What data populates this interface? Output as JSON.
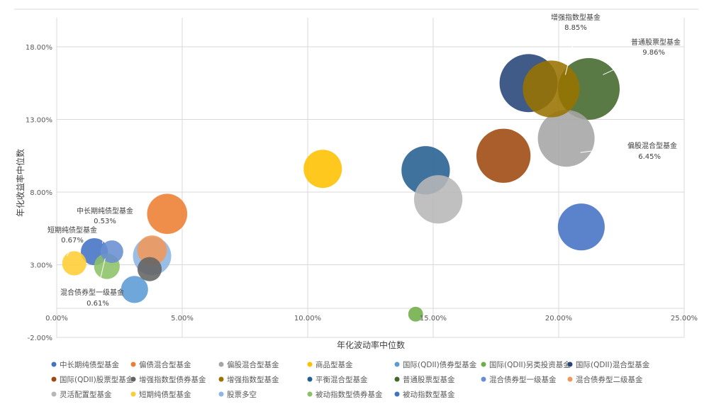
{
  "chart_data": {
    "type": "bubble",
    "title": "",
    "xlabel": "年化波动率中位数",
    "ylabel": "年化收益率中位数",
    "xlim": [
      0,
      25
    ],
    "ylim": [
      -2,
      20
    ],
    "x_ticks": [
      "0.00%",
      "5.00%",
      "10.00%",
      "15.00%",
      "20.00%",
      "25.00%"
    ],
    "y_ticks": [
      "-2.00%",
      "3.00%",
      "8.00%",
      "13.00%",
      "18.00%"
    ],
    "x_tick_values": [
      0,
      5,
      10,
      15,
      20,
      25
    ],
    "y_tick_values": [
      -2,
      3,
      8,
      13,
      18
    ],
    "grid": true,
    "legend_position": "bottom",
    "series": [
      {
        "name": "中长期纯债型基金",
        "color": "#4472C4",
        "x": 1.5,
        "y": 3.9,
        "size": 0.5
      },
      {
        "name": "偏债混合型基金",
        "color": "#ED7D31",
        "x": 4.4,
        "y": 6.5,
        "size": 1.1
      },
      {
        "name": "偏股混合型基金",
        "color": "#A5A5A5",
        "x": 20.3,
        "y": 11.7,
        "size": 2.2
      },
      {
        "name": "商品型基金",
        "color": "#FFC000",
        "x": 10.6,
        "y": 9.6,
        "size": 1.0
      },
      {
        "name": "国际(QDII)债券型基金",
        "color": "#5B9BD5",
        "x": 3.1,
        "y": 1.3,
        "size": 0.5
      },
      {
        "name": "国际(QDII)另类投资基金",
        "color": "#70AD47",
        "x": 14.3,
        "y": -0.4,
        "size": 0.15
      },
      {
        "name": "国际(QDII)混合型基金",
        "color": "#264478",
        "x": 18.8,
        "y": 15.5,
        "size": 2.3
      },
      {
        "name": "国际(QDII)股票型基金",
        "color": "#9E480E",
        "x": 17.8,
        "y": 10.5,
        "size": 2.0
      },
      {
        "name": "增强指数型债券基金",
        "color": "#636363",
        "x": 3.7,
        "y": 2.7,
        "size": 0.4
      },
      {
        "name": "增强指数型基金",
        "color": "#997300",
        "x": 19.7,
        "y": 15.1,
        "size": 2.2
      },
      {
        "name": "平衡混合型基金",
        "color": "#255E91",
        "x": 14.7,
        "y": 9.5,
        "size": 1.6
      },
      {
        "name": "普通股票型基金",
        "color": "#43682B",
        "x": 21.2,
        "y": 15.1,
        "size": 2.6
      },
      {
        "name": "混合债券型一级基金",
        "color": "#698ED0",
        "x": 2.2,
        "y": 3.9,
        "size": 0.35
      },
      {
        "name": "混合债券型二级基金",
        "color": "#F1975A",
        "x": 3.8,
        "y": 4.0,
        "size": 0.6
      },
      {
        "name": "灵活配置型基金",
        "color": "#B7B7B7",
        "x": 15.2,
        "y": 7.5,
        "size": 1.6
      },
      {
        "name": "短期纯债型基金",
        "color": "#FFCD33",
        "x": 0.7,
        "y": 3.1,
        "size": 0.4
      },
      {
        "name": "股票多空",
        "color": "#8CB6E3",
        "x": 3.8,
        "y": 3.6,
        "size": 1.0
      },
      {
        "name": "被动指数型债券基金",
        "color": "#8CC168",
        "x": 2.0,
        "y": 2.9,
        "size": 0.45
      },
      {
        "name": "被动指数型基金",
        "color": "#4472C4",
        "x": 20.9,
        "y": 5.6,
        "size": 1.5
      }
    ],
    "annotations": [
      {
        "label": "增强指数型基金",
        "value": "8.85%"
      },
      {
        "label": "普通股票型基金",
        "value": "9.86%"
      },
      {
        "label": "偏股混合型基金",
        "value": "6.45%"
      },
      {
        "label": "中长期纯债型基金",
        "value": "0.53%"
      },
      {
        "label": "短期纯债型基金",
        "value": "0.67%"
      },
      {
        "label": "混合债券型一级基金",
        "value": "0.61%"
      }
    ]
  }
}
